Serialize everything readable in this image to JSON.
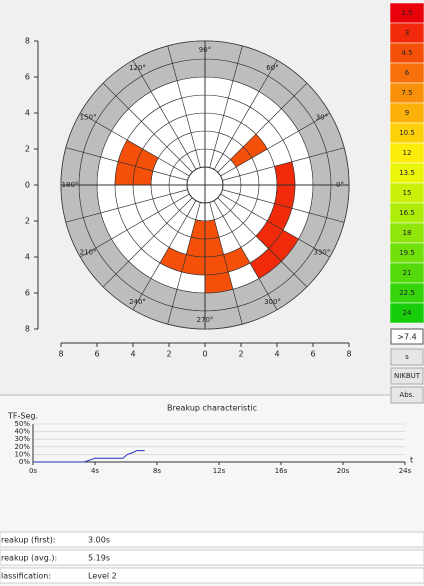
{
  "polar": {
    "type": "polar-heatmap",
    "xticks": [
      {
        "value": -8,
        "label": "8"
      },
      {
        "value": -6,
        "label": "6"
      },
      {
        "value": -4,
        "label": "4"
      },
      {
        "value": -2,
        "label": "2"
      },
      0,
      2,
      4,
      6,
      8
    ],
    "yticks": [
      8,
      6,
      4,
      2,
      0,
      {
        "value": -2,
        "label": "2"
      },
      {
        "value": -4,
        "label": "4"
      },
      {
        "value": -6,
        "label": "6"
      },
      {
        "value": -8,
        "label": "8"
      }
    ],
    "angle_labels": [
      {
        "value": 0,
        "label": "0°"
      },
      {
        "value": 30,
        "label": "30°"
      },
      {
        "value": 60,
        "label": "60°"
      },
      {
        "value": 90,
        "label": "90°"
      },
      {
        "value": 120,
        "label": "120°"
      },
      {
        "value": 150,
        "label": "150°"
      },
      {
        "value": 180,
        "label": "180°"
      },
      {
        "value": 210,
        "label": "210°"
      },
      {
        "value": 240,
        "label": "240°"
      },
      {
        "value": 270,
        "label": "270°"
      },
      {
        "value": 300,
        "label": "300°"
      },
      {
        "value": 330,
        "label": "330°"
      }
    ],
    "cells": [
      {
        "sector": 10,
        "ring": 2,
        "value": 4.5
      },
      {
        "sector": 10,
        "ring": 3,
        "value": 4.5
      },
      {
        "sector": 11,
        "ring": 2,
        "value": 4.5
      },
      {
        "sector": 11,
        "ring": 3,
        "value": 4.5
      },
      {
        "sector": 2,
        "ring": 1,
        "value": 4.5
      },
      {
        "sector": 2,
        "ring": 2,
        "value": 4.5
      },
      {
        "sector": 0,
        "ring": 3,
        "value": 3
      },
      {
        "sector": 23,
        "ring": 3,
        "value": 3
      },
      {
        "sector": 22,
        "ring": 3,
        "value": 3
      },
      {
        "sector": 21,
        "ring": 3,
        "value": 3
      },
      {
        "sector": 21,
        "ring": 4,
        "value": 3
      },
      {
        "sector": 20,
        "ring": 4,
        "value": 3
      },
      {
        "sector": 17,
        "ring": 1,
        "value": 4.5
      },
      {
        "sector": 17,
        "ring": 2,
        "value": 4.5
      },
      {
        "sector": 17,
        "ring": 3,
        "value": 4.5
      },
      {
        "sector": 18,
        "ring": 1,
        "value": 4.5
      },
      {
        "sector": 18,
        "ring": 2,
        "value": 4.5
      },
      {
        "sector": 18,
        "ring": 3,
        "value": 4.5
      },
      {
        "sector": 18,
        "ring": 4,
        "value": 4.5
      },
      {
        "sector": 19,
        "ring": 3,
        "value": 4.5
      },
      {
        "sector": 16,
        "ring": 3,
        "value": 4.5
      }
    ]
  },
  "legend": {
    "values": [
      1.5,
      3,
      4.5,
      6,
      7.5,
      9,
      10.5,
      12,
      13.5,
      15,
      16.5,
      18,
      19.5,
      21,
      22.5,
      24
    ],
    "colors": [
      "#e8000b",
      "#f02a0a",
      "#f4500a",
      "#f7700a",
      "#f9900a",
      "#fbb00a",
      "#fcd00a",
      "#fdec0a",
      "#eaf50a",
      "#ccf00a",
      "#aeec0a",
      "#90e60a",
      "#72e00a",
      "#54da0a",
      "#36d40a",
      "#18ce0a"
    ]
  },
  "threshold": ">7.4",
  "buttons": [
    "s",
    "NIKBUT",
    "Abs."
  ],
  "breakup": {
    "type": "line",
    "title": "Breakup characteristic",
    "y_label": "TF-Seg.",
    "x_label": "t",
    "x": [
      0,
      3.3,
      4,
      5.8,
      6.1,
      6.4,
      6.7,
      7.2
    ],
    "series": [
      {
        "color": "#2233bb",
        "values": [
          0,
          0,
          5,
          5,
          10,
          12,
          15,
          15
        ]
      }
    ],
    "xlim": [
      0,
      24
    ],
    "xticks": [
      {
        "value": 0,
        "label": "0s"
      },
      {
        "value": 4,
        "label": "4s"
      },
      {
        "value": 8,
        "label": "8s"
      },
      {
        "value": 12,
        "label": "12s"
      },
      {
        "value": 16,
        "label": "16s"
      },
      {
        "value": 20,
        "label": "20s"
      },
      {
        "value": 24,
        "label": "24s"
      }
    ],
    "ylim": [
      0,
      50
    ],
    "yticks": [
      {
        "value": 0,
        "label": "0%"
      },
      {
        "value": 10,
        "label": "10%"
      },
      {
        "value": 20,
        "label": "20%"
      },
      {
        "value": 30,
        "label": "30%"
      },
      {
        "value": 40,
        "label": "40%"
      },
      {
        "value": 50,
        "label": "50%"
      }
    ]
  },
  "fields": [
    {
      "label": "reakup (first):",
      "value": "3.00s"
    },
    {
      "label": "reakup (avg.):",
      "value": "5.19s"
    },
    {
      "label": "lassification:",
      "value": "Level 2"
    }
  ]
}
